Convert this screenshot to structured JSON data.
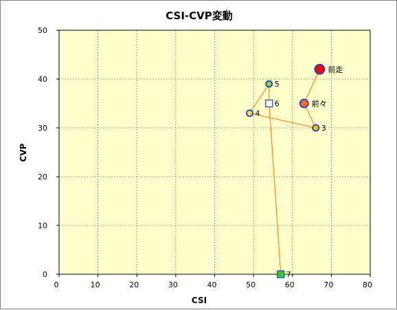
{
  "chart_data": {
    "type": "scatter",
    "title": "CSI-CVP変動",
    "xlabel": "CSI",
    "ylabel": "CVP",
    "xlim": [
      0,
      80
    ],
    "ylim": [
      0,
      50
    ],
    "xticks": [
      0,
      10,
      20,
      30,
      40,
      50,
      60,
      70,
      80
    ],
    "yticks": [
      0,
      10,
      20,
      30,
      40,
      50
    ],
    "grid": true,
    "background": "#ffffcc",
    "line_color": "#ff8c1a",
    "points": [
      {
        "label": "前走",
        "x": 67.0,
        "y": 42.0,
        "marker": "circle-large",
        "fill": "#ff0000",
        "stroke": "#1f3fbf"
      },
      {
        "label": "前々",
        "x": 63.0,
        "y": 35.0,
        "marker": "circle-medium",
        "fill": "#ff6a2a",
        "stroke": "#1f3fbf"
      },
      {
        "label": "3",
        "x": 66.0,
        "y": 30.0,
        "marker": "circle",
        "fill": "#ffc000",
        "stroke": "#1f3fbf"
      },
      {
        "label": "4",
        "x": 49.0,
        "y": 33.0,
        "marker": "circle",
        "fill": "#ffd966",
        "stroke": "#1f3fbf"
      },
      {
        "label": "5",
        "x": 54.0,
        "y": 39.0,
        "marker": "circle",
        "fill": "#92d050",
        "stroke": "#1f3fbf"
      },
      {
        "label": "6",
        "x": 54.0,
        "y": 35.0,
        "marker": "square",
        "fill": "#ffffff",
        "stroke": "#1f3fbf"
      },
      {
        "label": "7",
        "x": 57.0,
        "y": 0.0,
        "marker": "square",
        "fill": "#33cc33",
        "stroke": "#1f3fbf"
      }
    ]
  }
}
